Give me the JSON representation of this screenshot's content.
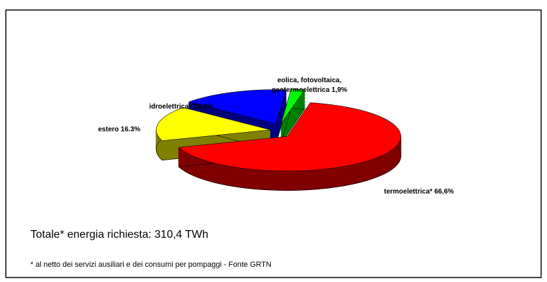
{
  "chart_data": {
    "type": "pie3d",
    "categories": [
      "eolica, fotovoltaica, geotermoelettrica",
      "termoelettrica*",
      "estero",
      "idroelettrica*"
    ],
    "values": [
      1.9,
      66.6,
      16.3,
      15.2
    ],
    "value_labels": [
      "1,9%",
      "66,6%",
      "16.3%",
      "15,2%"
    ],
    "colors": [
      "#00ff00",
      "#ff0000",
      "#ffff00",
      "#0000ff"
    ],
    "side_colors": [
      "#008000",
      "#800000",
      "#808000",
      "#000080"
    ]
  },
  "total": "Totale* energia richiesta:  310,4 TWh",
  "footnote": "* al netto dei servizi ausiliari e dei consumi per pompaggi - Fonte GRTN"
}
